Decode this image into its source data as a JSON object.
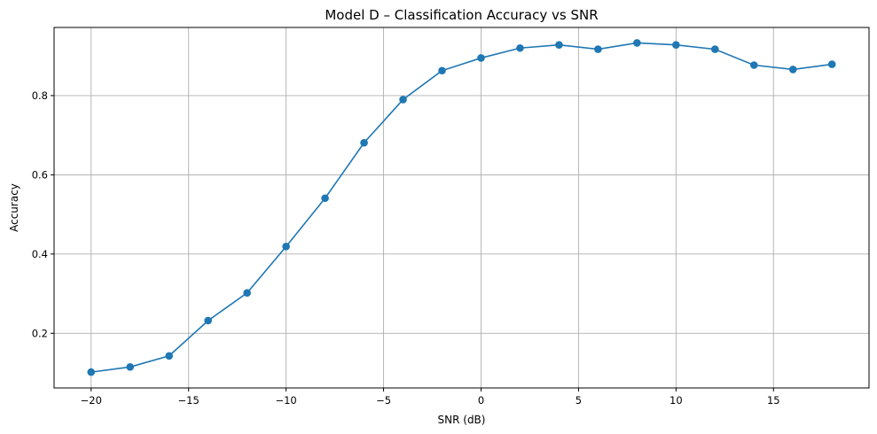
{
  "chart_data": {
    "type": "line",
    "title": "Model D – Classification Accuracy vs SNR",
    "xlabel": "SNR (dB)",
    "ylabel": "Accuracy",
    "xlim": [
      -21.9,
      19.9
    ],
    "ylim": [
      0.062,
      0.972
    ],
    "xticks": [
      -20,
      -15,
      -10,
      -5,
      0,
      5,
      10,
      15
    ],
    "xtick_labels": [
      "−20",
      "−15",
      "−10",
      "−5",
      "0",
      "5",
      "10",
      "15"
    ],
    "yticks": [
      0.2,
      0.4,
      0.6,
      0.8
    ],
    "ytick_labels": [
      "0.2",
      "0.4",
      "0.6",
      "0.8"
    ],
    "grid": true,
    "line_color": "#1f77b4",
    "marker": "circle",
    "x": [
      -20,
      -18,
      -16,
      -14,
      -12,
      -10,
      -8,
      -6,
      -4,
      -2,
      0,
      2,
      4,
      6,
      8,
      10,
      12,
      14,
      16,
      18
    ],
    "y": [
      0.102,
      0.115,
      0.143,
      0.232,
      0.302,
      0.419,
      0.541,
      0.681,
      0.79,
      0.863,
      0.895,
      0.92,
      0.928,
      0.917,
      0.933,
      0.928,
      0.917,
      0.877,
      0.866,
      0.879
    ]
  }
}
